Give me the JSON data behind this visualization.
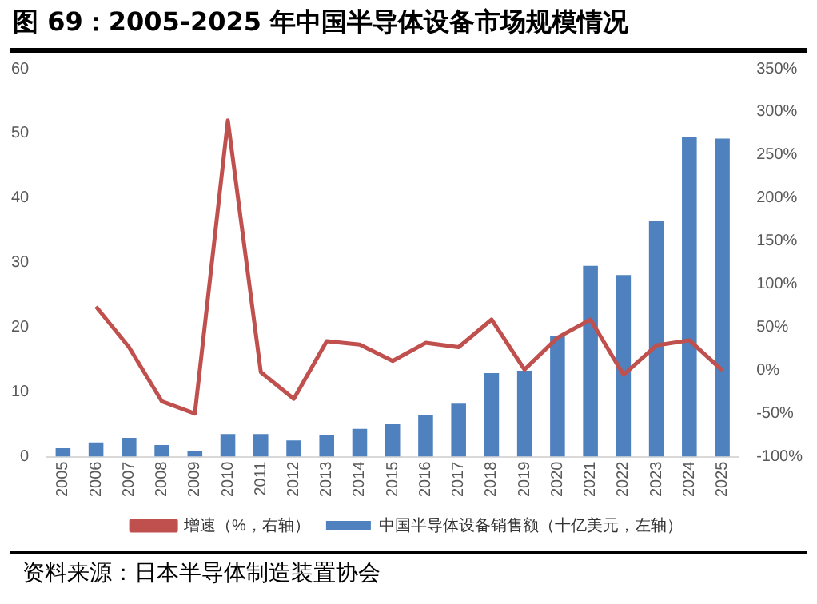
{
  "chart_data": {
    "type": "bar",
    "title": "图 69：2005-2025 年中国半导体设备市场规模情况",
    "categories": [
      "2005",
      "2006",
      "2007",
      "2008",
      "2009",
      "2010",
      "2011",
      "2012",
      "2013",
      "2014",
      "2015",
      "2016",
      "2017",
      "2018",
      "2019",
      "2020",
      "2021",
      "2022",
      "2023",
      "2024",
      "2025"
    ],
    "series": [
      {
        "name": "中国半导体设备销售额（十亿美元，左轴）",
        "color": "#4e81bd",
        "values": [
          1.3,
          2.2,
          2.9,
          1.8,
          0.9,
          3.5,
          3.5,
          2.5,
          3.3,
          4.3,
          5.0,
          6.4,
          8.2,
          12.9,
          13.3,
          18.6,
          29.5,
          28.1,
          36.4,
          49.4,
          49.2
        ]
      },
      {
        "name": "增速（%，右轴）",
        "type": "line",
        "axis": "y2",
        "color": "#c0504d",
        "values": [
          null,
          74,
          27,
          -36,
          -50,
          290,
          -2,
          -33,
          34,
          30,
          11,
          32,
          27,
          59,
          1,
          38,
          59,
          -5,
          29,
          35,
          0
        ]
      }
    ],
    "ylim": [
      0,
      60
    ],
    "yticks": [
      0,
      10,
      20,
      30,
      40,
      50,
      60
    ],
    "y2lim": [
      -100,
      350
    ],
    "y2ticks": [
      {
        "value": -100,
        "label": "-100%"
      },
      {
        "value": -50,
        "label": "-50%"
      },
      {
        "value": 0,
        "label": "0%"
      },
      {
        "value": 50,
        "label": "50%"
      },
      {
        "value": 100,
        "label": "100%"
      },
      {
        "value": 150,
        "label": "150%"
      },
      {
        "value": 200,
        "label": "200%"
      },
      {
        "value": 250,
        "label": "250%"
      },
      {
        "value": 300,
        "label": "300%"
      },
      {
        "value": 350,
        "label": "350%"
      }
    ],
    "grid": false,
    "legend": "bottom",
    "marker": "none",
    "annotations": [
      "资料来源：日本半导体制造装置协会"
    ]
  }
}
